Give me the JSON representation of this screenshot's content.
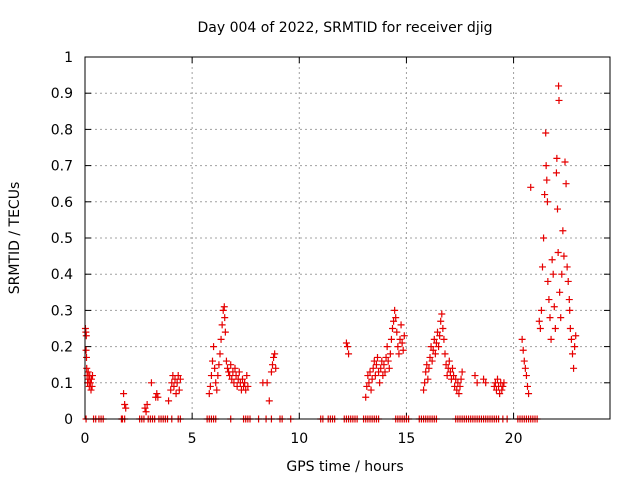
{
  "chart_data": {
    "type": "scatter",
    "title": "Day 004 of 2022, SRMTID for receiver djig",
    "xlabel": "GPS time / hours",
    "ylabel": "SRMTID / TECUs",
    "xlim": [
      0,
      24.5
    ],
    "ylim": [
      0,
      1
    ],
    "x_ticks": [
      0,
      5,
      10,
      15,
      20
    ],
    "x_tick_labels": [
      "0",
      "5",
      "10",
      "15",
      "20"
    ],
    "y_ticks": [
      0,
      0.1,
      0.2,
      0.3,
      0.4,
      0.5,
      0.6,
      0.7,
      0.8,
      0.9,
      1
    ],
    "y_tick_labels": [
      "0",
      "0.1",
      "0.2",
      "0.3",
      "0.4",
      "0.5",
      "0.6",
      "0.7",
      "0.8",
      "0.9",
      "1"
    ],
    "grid": true,
    "marker": "plus",
    "color": "#e60000",
    "series": [
      {
        "name": "SRMTID",
        "points": [
          [
            0.02,
            0.25
          ],
          [
            0.04,
            0.24
          ],
          [
            0.06,
            0.23
          ],
          [
            0.05,
            0.19
          ],
          [
            0.07,
            0.17
          ],
          [
            0.08,
            0.14
          ],
          [
            0.1,
            0.12
          ],
          [
            0.12,
            0.1
          ],
          [
            0.15,
            0.13
          ],
          [
            0.18,
            0.11
          ],
          [
            0.2,
            0.09
          ],
          [
            0.22,
            0.12
          ],
          [
            0.25,
            0.1
          ],
          [
            0.28,
            0.08
          ],
          [
            0.3,
            0.11
          ],
          [
            0.33,
            0.09
          ],
          [
            0.35,
            0.12
          ],
          [
            1.8,
            0.07
          ],
          [
            1.85,
            0.04
          ],
          [
            1.9,
            0.03
          ],
          [
            2.8,
            0.03
          ],
          [
            2.85,
            0.02
          ],
          [
            2.9,
            0.04
          ],
          [
            3.1,
            0.1
          ],
          [
            3.3,
            0.06
          ],
          [
            3.35,
            0.07
          ],
          [
            3.4,
            0.06
          ],
          [
            3.9,
            0.05
          ],
          [
            4.0,
            0.08
          ],
          [
            4.05,
            0.1
          ],
          [
            4.1,
            0.12
          ],
          [
            4.15,
            0.09
          ],
          [
            4.2,
            0.11
          ],
          [
            4.25,
            0.07
          ],
          [
            4.3,
            0.1
          ],
          [
            4.35,
            0.12
          ],
          [
            4.4,
            0.08
          ],
          [
            4.45,
            0.11
          ],
          [
            5.8,
            0.07
          ],
          [
            5.85,
            0.09
          ],
          [
            5.9,
            0.12
          ],
          [
            5.95,
            0.16
          ],
          [
            6.0,
            0.2
          ],
          [
            6.05,
            0.14
          ],
          [
            6.1,
            0.1
          ],
          [
            6.15,
            0.08
          ],
          [
            6.2,
            0.12
          ],
          [
            6.25,
            0.15
          ],
          [
            6.3,
            0.18
          ],
          [
            6.35,
            0.22
          ],
          [
            6.4,
            0.26
          ],
          [
            6.45,
            0.3
          ],
          [
            6.5,
            0.31
          ],
          [
            6.52,
            0.28
          ],
          [
            6.55,
            0.24
          ],
          [
            6.6,
            0.16
          ],
          [
            6.65,
            0.14
          ],
          [
            6.7,
            0.13
          ],
          [
            6.75,
            0.12
          ],
          [
            6.8,
            0.15
          ],
          [
            6.85,
            0.11
          ],
          [
            6.9,
            0.13
          ],
          [
            6.95,
            0.1
          ],
          [
            7.0,
            0.14
          ],
          [
            7.05,
            0.12
          ],
          [
            7.1,
            0.09
          ],
          [
            7.15,
            0.11
          ],
          [
            7.2,
            0.13
          ],
          [
            7.25,
            0.1
          ],
          [
            7.3,
            0.08
          ],
          [
            7.35,
            0.11
          ],
          [
            7.4,
            0.09
          ],
          [
            7.45,
            0.1
          ],
          [
            7.5,
            0.08
          ],
          [
            7.55,
            0.12
          ],
          [
            7.6,
            0.09
          ],
          [
            8.3,
            0.1
          ],
          [
            8.5,
            0.1
          ],
          [
            8.6,
            0.05
          ],
          [
            8.7,
            0.13
          ],
          [
            8.75,
            0.15
          ],
          [
            8.8,
            0.17
          ],
          [
            8.85,
            0.18
          ],
          [
            8.9,
            0.14
          ],
          [
            12.2,
            0.21
          ],
          [
            12.25,
            0.2
          ],
          [
            12.3,
            0.18
          ],
          [
            13.1,
            0.06
          ],
          [
            13.15,
            0.09
          ],
          [
            13.2,
            0.12
          ],
          [
            13.25,
            0.1
          ],
          [
            13.3,
            0.13
          ],
          [
            13.35,
            0.08
          ],
          [
            13.4,
            0.11
          ],
          [
            13.45,
            0.14
          ],
          [
            13.5,
            0.16
          ],
          [
            13.55,
            0.12
          ],
          [
            13.6,
            0.15
          ],
          [
            13.65,
            0.17
          ],
          [
            13.7,
            0.13
          ],
          [
            13.75,
            0.1
          ],
          [
            13.8,
            0.14
          ],
          [
            13.85,
            0.16
          ],
          [
            13.9,
            0.12
          ],
          [
            13.95,
            0.15
          ],
          [
            14.0,
            0.13
          ],
          [
            14.05,
            0.17
          ],
          [
            14.1,
            0.2
          ],
          [
            14.15,
            0.16
          ],
          [
            14.2,
            0.14
          ],
          [
            14.25,
            0.18
          ],
          [
            14.3,
            0.22
          ],
          [
            14.35,
            0.25
          ],
          [
            14.4,
            0.27
          ],
          [
            14.45,
            0.3
          ],
          [
            14.5,
            0.28
          ],
          [
            14.55,
            0.24
          ],
          [
            14.6,
            0.2
          ],
          [
            14.65,
            0.18
          ],
          [
            14.7,
            0.22
          ],
          [
            14.75,
            0.26
          ],
          [
            14.8,
            0.21
          ],
          [
            14.85,
            0.19
          ],
          [
            14.9,
            0.23
          ],
          [
            15.8,
            0.08
          ],
          [
            15.85,
            0.1
          ],
          [
            15.9,
            0.13
          ],
          [
            15.95,
            0.15
          ],
          [
            16.0,
            0.11
          ],
          [
            16.05,
            0.14
          ],
          [
            16.1,
            0.17
          ],
          [
            16.15,
            0.2
          ],
          [
            16.2,
            0.16
          ],
          [
            16.25,
            0.19
          ],
          [
            16.3,
            0.22
          ],
          [
            16.35,
            0.18
          ],
          [
            16.4,
            0.21
          ],
          [
            16.45,
            0.24
          ],
          [
            16.5,
            0.2
          ],
          [
            16.55,
            0.23
          ],
          [
            16.6,
            0.27
          ],
          [
            16.65,
            0.29
          ],
          [
            16.7,
            0.25
          ],
          [
            16.75,
            0.22
          ],
          [
            16.8,
            0.18
          ],
          [
            16.85,
            0.15
          ],
          [
            16.9,
            0.12
          ],
          [
            16.95,
            0.14
          ],
          [
            17.0,
            0.16
          ],
          [
            17.05,
            0.13
          ],
          [
            17.1,
            0.11
          ],
          [
            17.15,
            0.14
          ],
          [
            17.2,
            0.12
          ],
          [
            17.25,
            0.09
          ],
          [
            17.3,
            0.11
          ],
          [
            17.35,
            0.08
          ],
          [
            17.4,
            0.1
          ],
          [
            17.45,
            0.07
          ],
          [
            17.5,
            0.09
          ],
          [
            17.55,
            0.11
          ],
          [
            17.6,
            0.13
          ],
          [
            18.2,
            0.12
          ],
          [
            18.3,
            0.1
          ],
          [
            18.6,
            0.11
          ],
          [
            18.7,
            0.1
          ],
          [
            19.1,
            0.09
          ],
          [
            19.15,
            0.1
          ],
          [
            19.2,
            0.08
          ],
          [
            19.25,
            0.11
          ],
          [
            19.3,
            0.09
          ],
          [
            19.35,
            0.07
          ],
          [
            19.4,
            0.1
          ],
          [
            19.45,
            0.08
          ],
          [
            19.5,
            0.09
          ],
          [
            19.55,
            0.1
          ],
          [
            20.4,
            0.22
          ],
          [
            20.45,
            0.19
          ],
          [
            20.5,
            0.16
          ],
          [
            20.55,
            0.14
          ],
          [
            20.6,
            0.12
          ],
          [
            20.65,
            0.09
          ],
          [
            20.7,
            0.07
          ],
          [
            20.8,
            0.64
          ],
          [
            21.2,
            0.27
          ],
          [
            21.25,
            0.25
          ],
          [
            21.3,
            0.3
          ],
          [
            21.35,
            0.42
          ],
          [
            21.4,
            0.5
          ],
          [
            21.45,
            0.62
          ],
          [
            21.5,
            0.79
          ],
          [
            21.52,
            0.7
          ],
          [
            21.55,
            0.66
          ],
          [
            21.58,
            0.6
          ],
          [
            21.6,
            0.38
          ],
          [
            21.65,
            0.33
          ],
          [
            21.7,
            0.28
          ],
          [
            21.75,
            0.22
          ],
          [
            21.8,
            0.44
          ],
          [
            21.85,
            0.4
          ],
          [
            21.9,
            0.31
          ],
          [
            21.95,
            0.25
          ],
          [
            22.0,
            0.68
          ],
          [
            22.02,
            0.72
          ],
          [
            22.05,
            0.58
          ],
          [
            22.08,
            0.46
          ],
          [
            22.1,
            0.92
          ],
          [
            22.12,
            0.88
          ],
          [
            22.15,
            0.35
          ],
          [
            22.2,
            0.28
          ],
          [
            22.25,
            0.4
          ],
          [
            22.3,
            0.52
          ],
          [
            22.35,
            0.45
          ],
          [
            22.4,
            0.71
          ],
          [
            22.45,
            0.65
          ],
          [
            22.5,
            0.42
          ],
          [
            22.55,
            0.38
          ],
          [
            22.6,
            0.33
          ],
          [
            22.62,
            0.3
          ],
          [
            22.65,
            0.25
          ],
          [
            22.7,
            0.22
          ],
          [
            22.75,
            0.18
          ],
          [
            22.8,
            0.14
          ],
          [
            22.85,
            0.2
          ],
          [
            22.9,
            0.23
          ]
        ],
        "zero_x": [
          0.05,
          0.4,
          0.5,
          0.65,
          0.75,
          0.85,
          1.7,
          1.75,
          1.85,
          2.55,
          2.65,
          2.75,
          2.95,
          3.05,
          3.15,
          3.25,
          3.45,
          3.55,
          3.65,
          3.75,
          3.85,
          4.05,
          4.35,
          4.45,
          5.7,
          5.8,
          5.9,
          6.0,
          6.1,
          6.8,
          7.4,
          7.5,
          7.6,
          7.7,
          8.1,
          8.45,
          8.7,
          9.1,
          9.2,
          9.6,
          11.0,
          11.1,
          11.35,
          11.45,
          11.55,
          11.65,
          12.1,
          12.2,
          12.3,
          12.4,
          12.5,
          12.6,
          12.7,
          13.0,
          13.1,
          13.2,
          13.3,
          13.4,
          13.5,
          13.6,
          13.7,
          14.5,
          14.6,
          14.7,
          14.8,
          14.9,
          15.0,
          15.1,
          15.6,
          15.7,
          15.8,
          15.9,
          16.0,
          16.1,
          16.2,
          16.3,
          16.4,
          17.3,
          17.4,
          17.5,
          17.6,
          17.7,
          17.8,
          17.9,
          18.0,
          18.1,
          18.2,
          18.3,
          18.4,
          18.5,
          18.6,
          18.7,
          18.8,
          18.9,
          19.0,
          19.1,
          19.2,
          19.3,
          19.5,
          19.7,
          20.2,
          20.3,
          20.4,
          20.5,
          20.6,
          20.7,
          20.8,
          20.9,
          21.0,
          21.1
        ]
      }
    ]
  }
}
